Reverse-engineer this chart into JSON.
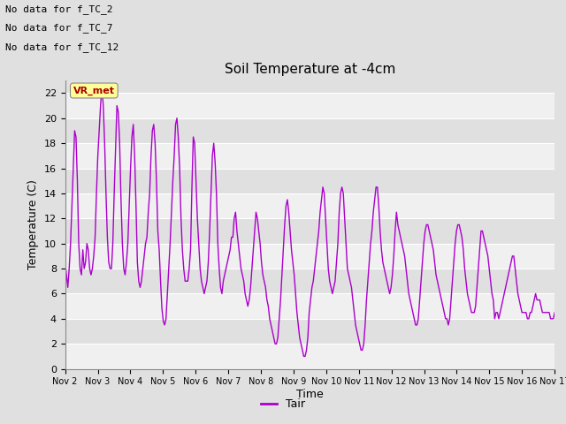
{
  "title": "Soil Temperature at -4cm",
  "ylabel": "Temperature (C)",
  "xlabel": "Time",
  "legend_label": "Tair",
  "line_color": "#AA00CC",
  "background_color": "#E0E0E0",
  "plot_bg_color": "#E8E8E8",
  "band_light": "#F0F0F0",
  "band_dark": "#E0E0E0",
  "ylim": [
    0,
    23
  ],
  "yticks": [
    0,
    2,
    4,
    6,
    8,
    10,
    12,
    14,
    16,
    18,
    20,
    22
  ],
  "annotations": [
    "No data for f_TC_2",
    "No data for f_TC_7",
    "No data for f_TC_12"
  ],
  "legend_box_color": "#FFFF99",
  "legend_text_color": "#AA0000",
  "data_points": [
    8.5,
    7.5,
    6.5,
    8.0,
    10.0,
    13.0,
    16.0,
    19.0,
    18.5,
    15.0,
    10.0,
    8.0,
    7.5,
    9.5,
    8.0,
    8.5,
    10.0,
    9.5,
    8.0,
    7.5,
    8.0,
    9.0,
    10.5,
    14.0,
    17.0,
    19.0,
    21.0,
    22.5,
    21.0,
    18.0,
    14.0,
    10.5,
    8.5,
    8.0,
    8.0,
    10.0,
    14.0,
    17.5,
    21.0,
    20.5,
    18.0,
    13.5,
    10.0,
    8.0,
    7.5,
    8.5,
    10.0,
    13.0,
    16.0,
    18.5,
    19.5,
    17.0,
    13.0,
    8.5,
    7.0,
    6.5,
    7.0,
    8.0,
    9.0,
    10.0,
    10.5,
    12.5,
    14.0,
    17.0,
    19.0,
    19.5,
    18.0,
    15.0,
    11.0,
    9.5,
    7.0,
    4.8,
    3.8,
    3.5,
    4.0,
    6.0,
    8.0,
    10.0,
    12.5,
    15.0,
    17.0,
    19.5,
    20.0,
    18.5,
    16.0,
    12.0,
    9.5,
    8.0,
    7.0,
    7.0,
    7.0,
    8.0,
    9.5,
    14.5,
    18.5,
    18.0,
    15.0,
    12.0,
    10.0,
    8.0,
    7.0,
    6.5,
    6.0,
    6.5,
    7.0,
    8.5,
    11.0,
    14.0,
    17.0,
    18.0,
    16.5,
    14.0,
    10.0,
    8.0,
    6.5,
    6.0,
    7.0,
    7.5,
    8.0,
    8.5,
    9.0,
    9.5,
    10.5,
    10.5,
    12.0,
    12.5,
    11.0,
    10.0,
    9.0,
    8.0,
    7.5,
    7.0,
    6.0,
    5.5,
    5.0,
    5.5,
    6.5,
    8.0,
    9.5,
    11.0,
    12.5,
    12.0,
    11.0,
    10.0,
    8.5,
    7.5,
    7.0,
    6.5,
    5.5,
    5.0,
    4.0,
    3.5,
    3.0,
    2.5,
    2.0,
    2.0,
    2.5,
    4.0,
    5.5,
    7.5,
    9.5,
    11.5,
    13.0,
    13.5,
    12.5,
    11.0,
    9.5,
    8.5,
    7.5,
    6.0,
    4.5,
    3.5,
    2.5,
    2.0,
    1.5,
    1.0,
    1.0,
    1.5,
    2.5,
    4.5,
    5.5,
    6.5,
    7.0,
    8.0,
    9.0,
    10.0,
    11.0,
    12.5,
    13.5,
    14.5,
    14.0,
    12.0,
    10.0,
    8.0,
    7.0,
    6.5,
    6.0,
    6.5,
    7.0,
    8.5,
    10.0,
    12.5,
    14.0,
    14.5,
    14.0,
    12.0,
    10.0,
    8.0,
    7.5,
    7.0,
    6.5,
    5.5,
    4.5,
    3.5,
    3.0,
    2.5,
    2.0,
    1.5,
    1.5,
    2.0,
    3.5,
    5.5,
    7.0,
    8.5,
    10.0,
    11.0,
    12.5,
    13.5,
    14.5,
    14.5,
    13.0,
    11.0,
    9.5,
    8.5,
    8.0,
    7.5,
    7.0,
    6.5,
    6.0,
    6.5,
    7.5,
    9.0,
    11.0,
    12.5,
    11.5,
    11.0,
    10.5,
    10.0,
    9.5,
    9.0,
    8.0,
    7.0,
    6.0,
    5.5,
    5.0,
    4.5,
    4.0,
    3.5,
    3.5,
    4.0,
    5.5,
    7.0,
    8.5,
    10.0,
    11.0,
    11.5,
    11.5,
    11.0,
    10.5,
    10.0,
    9.5,
    8.5,
    7.5,
    7.0,
    6.5,
    6.0,
    5.5,
    5.0,
    4.5,
    4.0,
    4.0,
    3.5,
    4.0,
    5.5,
    7.0,
    8.5,
    10.0,
    11.0,
    11.5,
    11.5,
    11.0,
    10.5,
    9.5,
    8.0,
    7.0,
    6.0,
    5.5,
    5.0,
    4.5,
    4.5,
    4.5,
    5.0,
    6.5,
    8.0,
    9.5,
    11.0,
    11.0,
    10.5,
    10.0,
    9.5,
    9.0,
    8.0,
    7.0,
    6.0,
    5.5,
    4.0,
    4.5,
    4.5,
    4.0,
    4.5,
    5.0,
    5.5,
    6.0,
    6.5,
    7.0,
    7.5,
    8.0,
    8.5,
    9.0,
    9.0,
    8.0,
    7.0,
    6.0,
    5.5,
    5.0,
    4.5,
    4.5,
    4.5,
    4.5,
    4.0,
    4.0,
    4.5,
    4.5,
    5.0,
    5.5,
    6.0,
    5.5,
    5.5,
    5.5,
    5.0,
    4.5,
    4.5,
    4.5,
    4.5,
    4.5,
    4.5,
    4.0,
    4.0,
    4.0,
    4.5
  ]
}
